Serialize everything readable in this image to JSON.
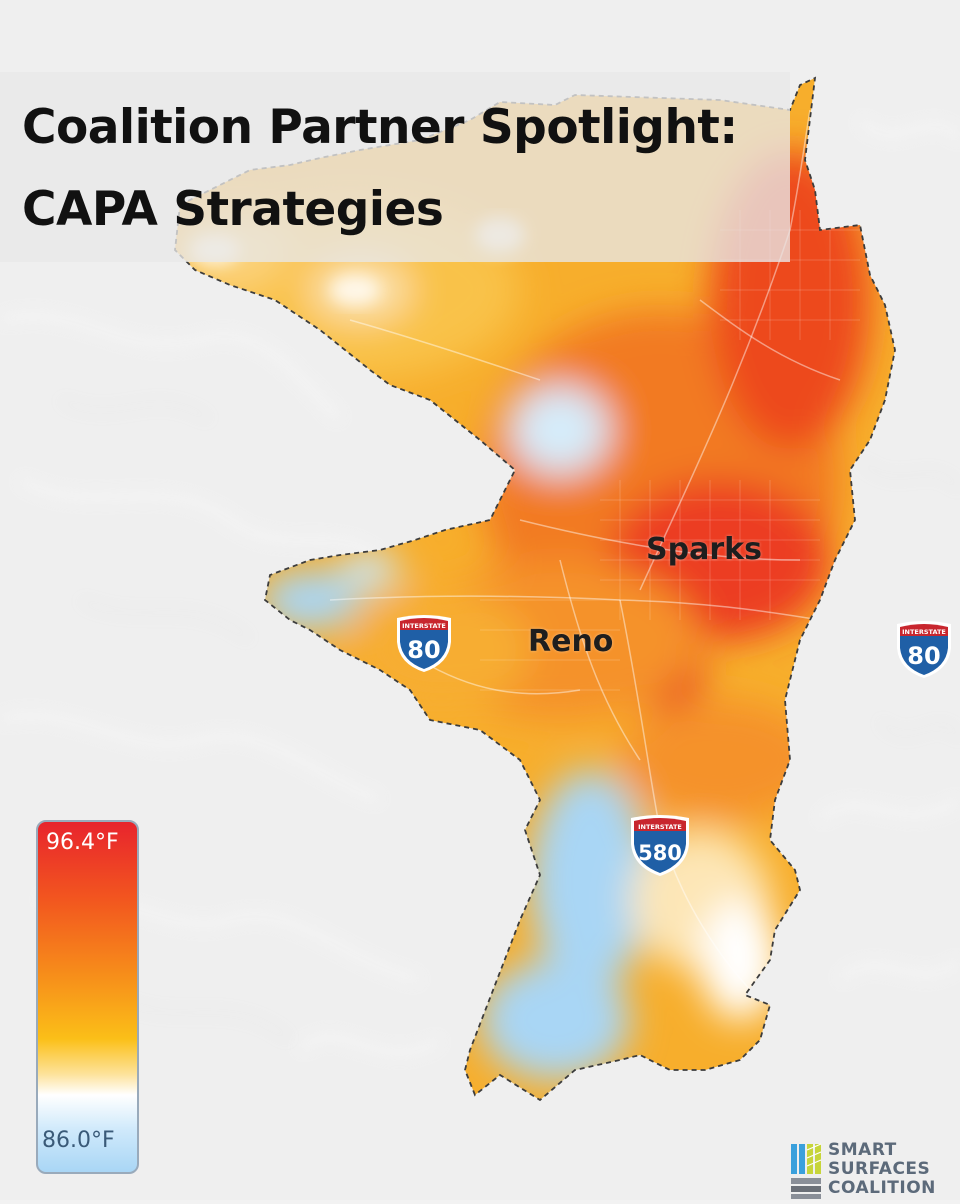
{
  "title": {
    "line1": "Coalition Partner Spotlight:",
    "line2": "CAPA Strategies"
  },
  "map": {
    "cities": [
      "Sparks",
      "Reno"
    ],
    "highways": [
      {
        "label": "INTERSTATE",
        "number": "80"
      },
      {
        "label": "INTERSTATE",
        "number": "580"
      },
      {
        "label": "INTERSTATE",
        "number": "80"
      }
    ]
  },
  "legend": {
    "max_label": "96.4°F",
    "min_label": "86.0°F",
    "colors": {
      "hot": "#e8242d",
      "warm": "#f7911a",
      "mild": "#fbbf18",
      "neutral": "#ffffff",
      "cool": "#a9d6f5"
    }
  },
  "logo": {
    "line1": "SMART",
    "line2": "SURFACES",
    "line3": "COALITION"
  }
}
